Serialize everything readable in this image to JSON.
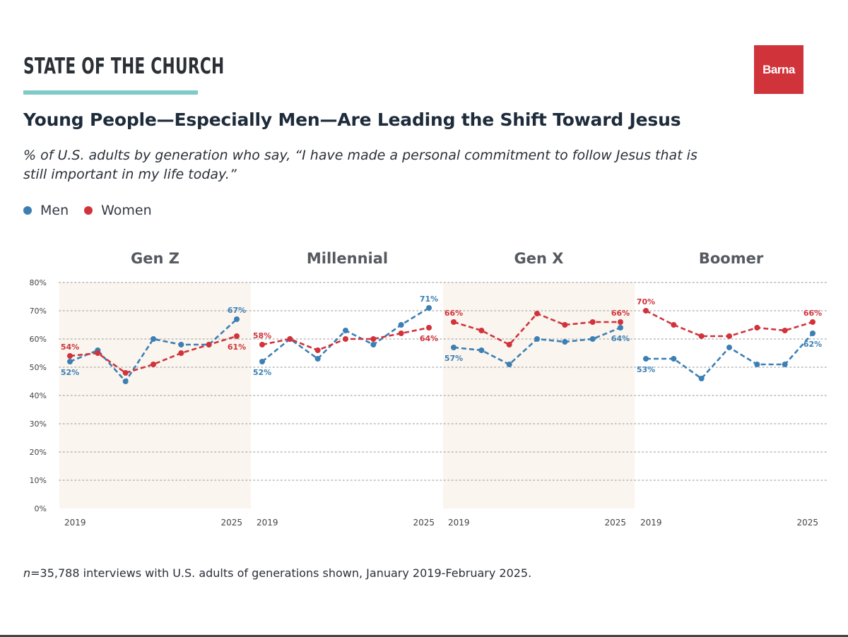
{
  "header": {
    "brand": "STATE OF THE CHURCH",
    "logo_text": "Barna",
    "title": "Young People—Especially Men—Are Leading the Shift Toward Jesus",
    "subtitle": "% of U.S. adults by generation who say, “I have made a personal commitment to follow Jesus that is still important in my life today.”"
  },
  "legend": [
    {
      "label": "Men",
      "color": "#3b7fb4"
    },
    {
      "label": "Women",
      "color": "#d1333b"
    }
  ],
  "colors": {
    "men": "#3b7fb4",
    "women": "#d1333b",
    "panel_shade": "#faf5ee",
    "grid": "#b5b5b5"
  },
  "footnote": {
    "n_label": "n",
    "text": "=35,788 interviews with U.S. adults of generations shown, January 2019-February 2025."
  },
  "chart_data": {
    "type": "line",
    "ylim": [
      0,
      80
    ],
    "y_ticks": [
      0,
      10,
      20,
      30,
      40,
      50,
      60,
      70,
      80
    ],
    "y_tick_labels": [
      "0%",
      "10%",
      "20%",
      "30%",
      "40%",
      "50%",
      "60%",
      "70%",
      "80%"
    ],
    "x": [
      2019,
      2020,
      2021,
      2022,
      2023,
      2024,
      2025
    ],
    "x_tick_labels": [
      "2019",
      "2025"
    ],
    "grid": true,
    "panels": [
      {
        "name": "Gen Z",
        "shaded": true,
        "series": [
          {
            "name": "Men",
            "values": [
              52,
              56,
              45,
              60,
              58,
              58,
              67
            ],
            "first_label": "52%",
            "last_label": "67%"
          },
          {
            "name": "Women",
            "values": [
              54,
              55,
              48,
              51,
              55,
              58,
              61
            ],
            "first_label": "54%",
            "last_label": "61%"
          }
        ]
      },
      {
        "name": "Millennial",
        "shaded": false,
        "series": [
          {
            "name": "Men",
            "values": [
              52,
              60,
              53,
              63,
              58,
              65,
              71
            ],
            "first_label": "52%",
            "last_label": "71%"
          },
          {
            "name": "Women",
            "values": [
              58,
              60,
              56,
              60,
              60,
              62,
              64
            ],
            "first_label": "58%",
            "last_label": "64%"
          }
        ]
      },
      {
        "name": "Gen X",
        "shaded": true,
        "series": [
          {
            "name": "Men",
            "values": [
              57,
              56,
              51,
              60,
              59,
              60,
              64
            ],
            "first_label": "57%",
            "last_label": "64%"
          },
          {
            "name": "Women",
            "values": [
              66,
              63,
              58,
              69,
              65,
              66,
              66
            ],
            "first_label": "66%",
            "last_label": "66%"
          }
        ]
      },
      {
        "name": "Boomer",
        "shaded": false,
        "series": [
          {
            "name": "Men",
            "values": [
              53,
              53,
              46,
              57,
              51,
              51,
              62
            ],
            "first_label": "53%",
            "last_label": "62%"
          },
          {
            "name": "Women",
            "values": [
              70,
              65,
              61,
              61,
              64,
              63,
              66
            ],
            "first_label": "70%",
            "last_label": "66%"
          }
        ]
      }
    ]
  }
}
